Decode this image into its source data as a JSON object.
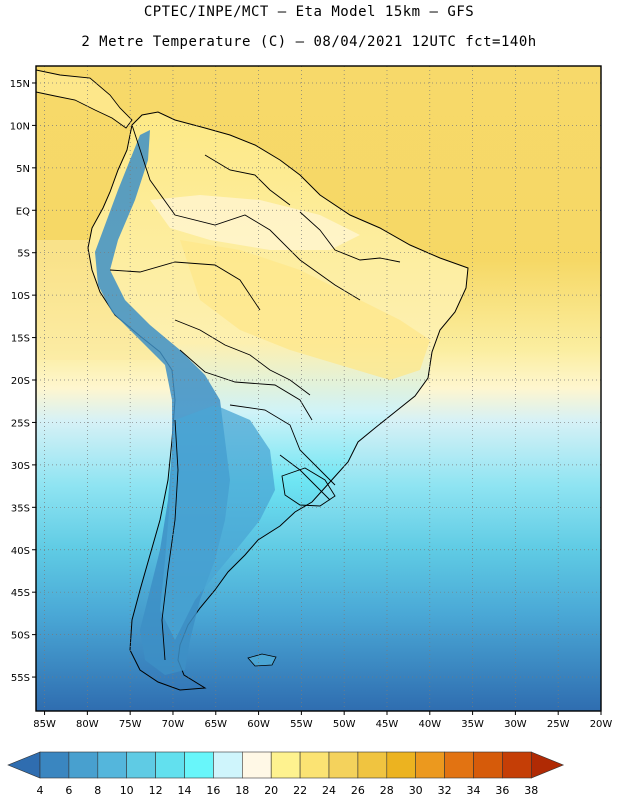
{
  "header": {
    "line1": "CPTEC/INPE/MCT –  Eta Model 15km – GFS",
    "line2": "2 Metre Temperature (C) – 08/04/2021 12UTC fct=140h"
  },
  "map": {
    "lat_ticks": [
      "15N",
      "10N",
      "5N",
      "EQ",
      "5S",
      "10S",
      "15S",
      "20S",
      "25S",
      "30S",
      "35S",
      "40S",
      "45S",
      "50S",
      "55S"
    ],
    "lon_ticks": [
      "85W",
      "80W",
      "75W",
      "70W",
      "65W",
      "60W",
      "55W",
      "50W",
      "45W",
      "40W",
      "35W",
      "30W",
      "25W",
      "20W"
    ],
    "lon_range": [
      -86,
      -20
    ],
    "lat_range": [
      -59,
      17
    ],
    "grid": true
  },
  "legend": {
    "labels": [
      "4",
      "6",
      "8",
      "10",
      "12",
      "14",
      "16",
      "18",
      "20",
      "22",
      "24",
      "26",
      "28",
      "30",
      "32",
      "34",
      "36",
      "38"
    ],
    "colors": [
      "#2f6db0",
      "#3a86c0",
      "#48a0cf",
      "#54b6dc",
      "#5fcbe4",
      "#62e0ee",
      "#68f6fa",
      "#cff5fc",
      "#fff8e6",
      "#fef28f",
      "#fbe373",
      "#f4d25c",
      "#f0c440",
      "#ecb320",
      "#ec991e",
      "#e27312",
      "#d65b0a",
      "#c53e06",
      "#b02a04"
    ]
  },
  "colors": {
    "ocean_warm": "#f8dc72",
    "ocean_cool": "#52bfe0",
    "land_warm": "#fde78a",
    "andes": "#3a8ac4",
    "border": "#000000"
  }
}
